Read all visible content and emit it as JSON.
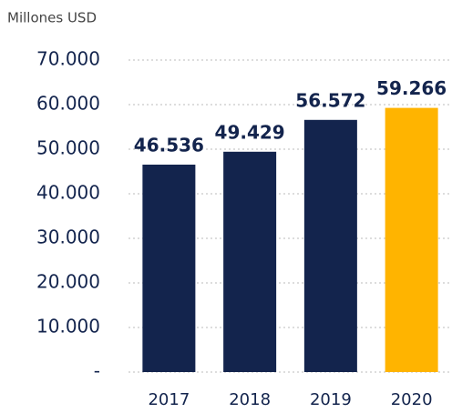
{
  "chart_data": {
    "type": "bar",
    "y_axis_label": "Millones USD",
    "categories": [
      "2017",
      "2018",
      "2019",
      "2020"
    ],
    "values": [
      46536,
      49429,
      56572,
      59266
    ],
    "value_labels": [
      "46.536",
      "49.429",
      "56.572",
      "59.266"
    ],
    "colors": [
      "#13244d",
      "#13244d",
      "#13244d",
      "#ffb400"
    ],
    "ylim": [
      0,
      70000
    ],
    "yticks": [
      {
        "value": 0,
        "label": "-"
      },
      {
        "value": 10000,
        "label": "10.000"
      },
      {
        "value": 20000,
        "label": "20.000"
      },
      {
        "value": 30000,
        "label": "30.000"
      },
      {
        "value": 40000,
        "label": "40.000"
      },
      {
        "value": 50000,
        "label": "50.000"
      },
      {
        "value": 60000,
        "label": "60.000"
      },
      {
        "value": 70000,
        "label": "70.000"
      }
    ],
    "grid": true
  }
}
